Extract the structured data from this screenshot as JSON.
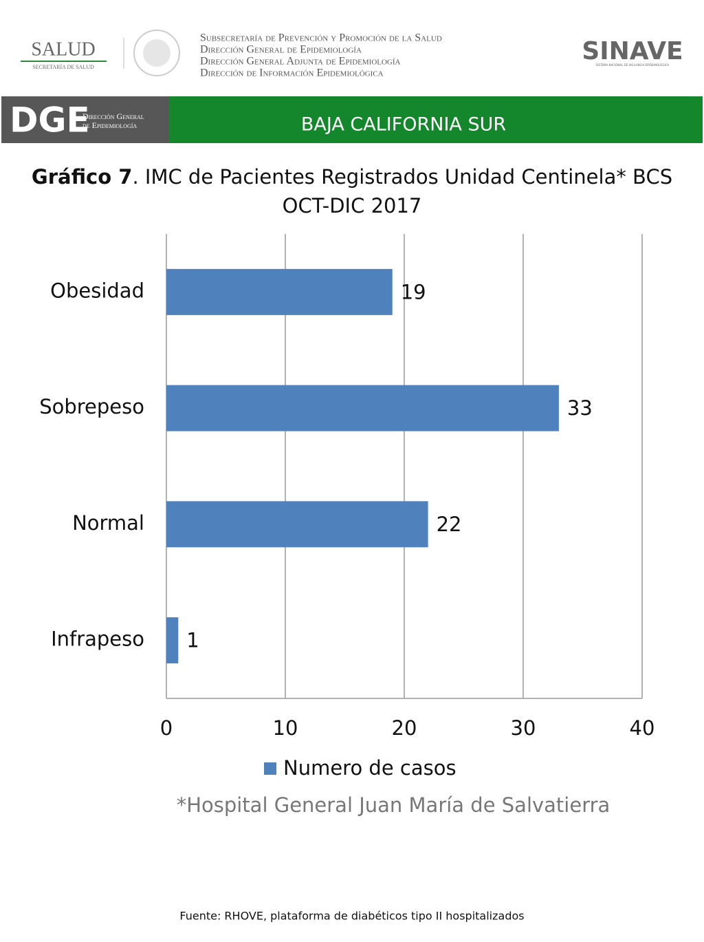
{
  "header": {
    "salud": "SALUD",
    "salud_sub": "SECRETARÍA DE SALUD",
    "lines": [
      "Subsecretaría de Prevención y Promoción de la Salud",
      "Dirección General de Epidemiología",
      "Dirección General Adjunta de Epidemiología",
      "Dirección de Información Epidemiológica"
    ],
    "sinave": "SINAVE",
    "sinave_sub": "SISTEMA NACIONAL DE VIGILANCIA EPIDEMIOLÓGICA",
    "dge": "DGE",
    "dge_text": [
      "Dirección General",
      "de Epidemiología"
    ],
    "region": "BAJA CALIFORNIA SUR"
  },
  "chart_data": {
    "type": "bar",
    "orientation": "horizontal",
    "title_label": "Gráfico 7",
    "title": ". IMC de Pacientes Registrados Unidad Centinela* BCS OCT-DIC 2017",
    "categories": [
      "Obesidad",
      "Sobrepeso",
      "Normal",
      "Infrapeso"
    ],
    "series": [
      {
        "name": "Numero de casos",
        "color": "#4f81bd",
        "values": [
          19,
          33,
          22,
          1
        ]
      }
    ],
    "xlim": [
      0,
      40
    ],
    "xticks": [
      0,
      10,
      20,
      30,
      40
    ],
    "grid": true,
    "legend": "bottom"
  },
  "footnote": "*Hospital General Juan María de Salvatierra",
  "source": "Fuente: RHOVE, plataforma de diabéticos tipo II hospitalizados"
}
